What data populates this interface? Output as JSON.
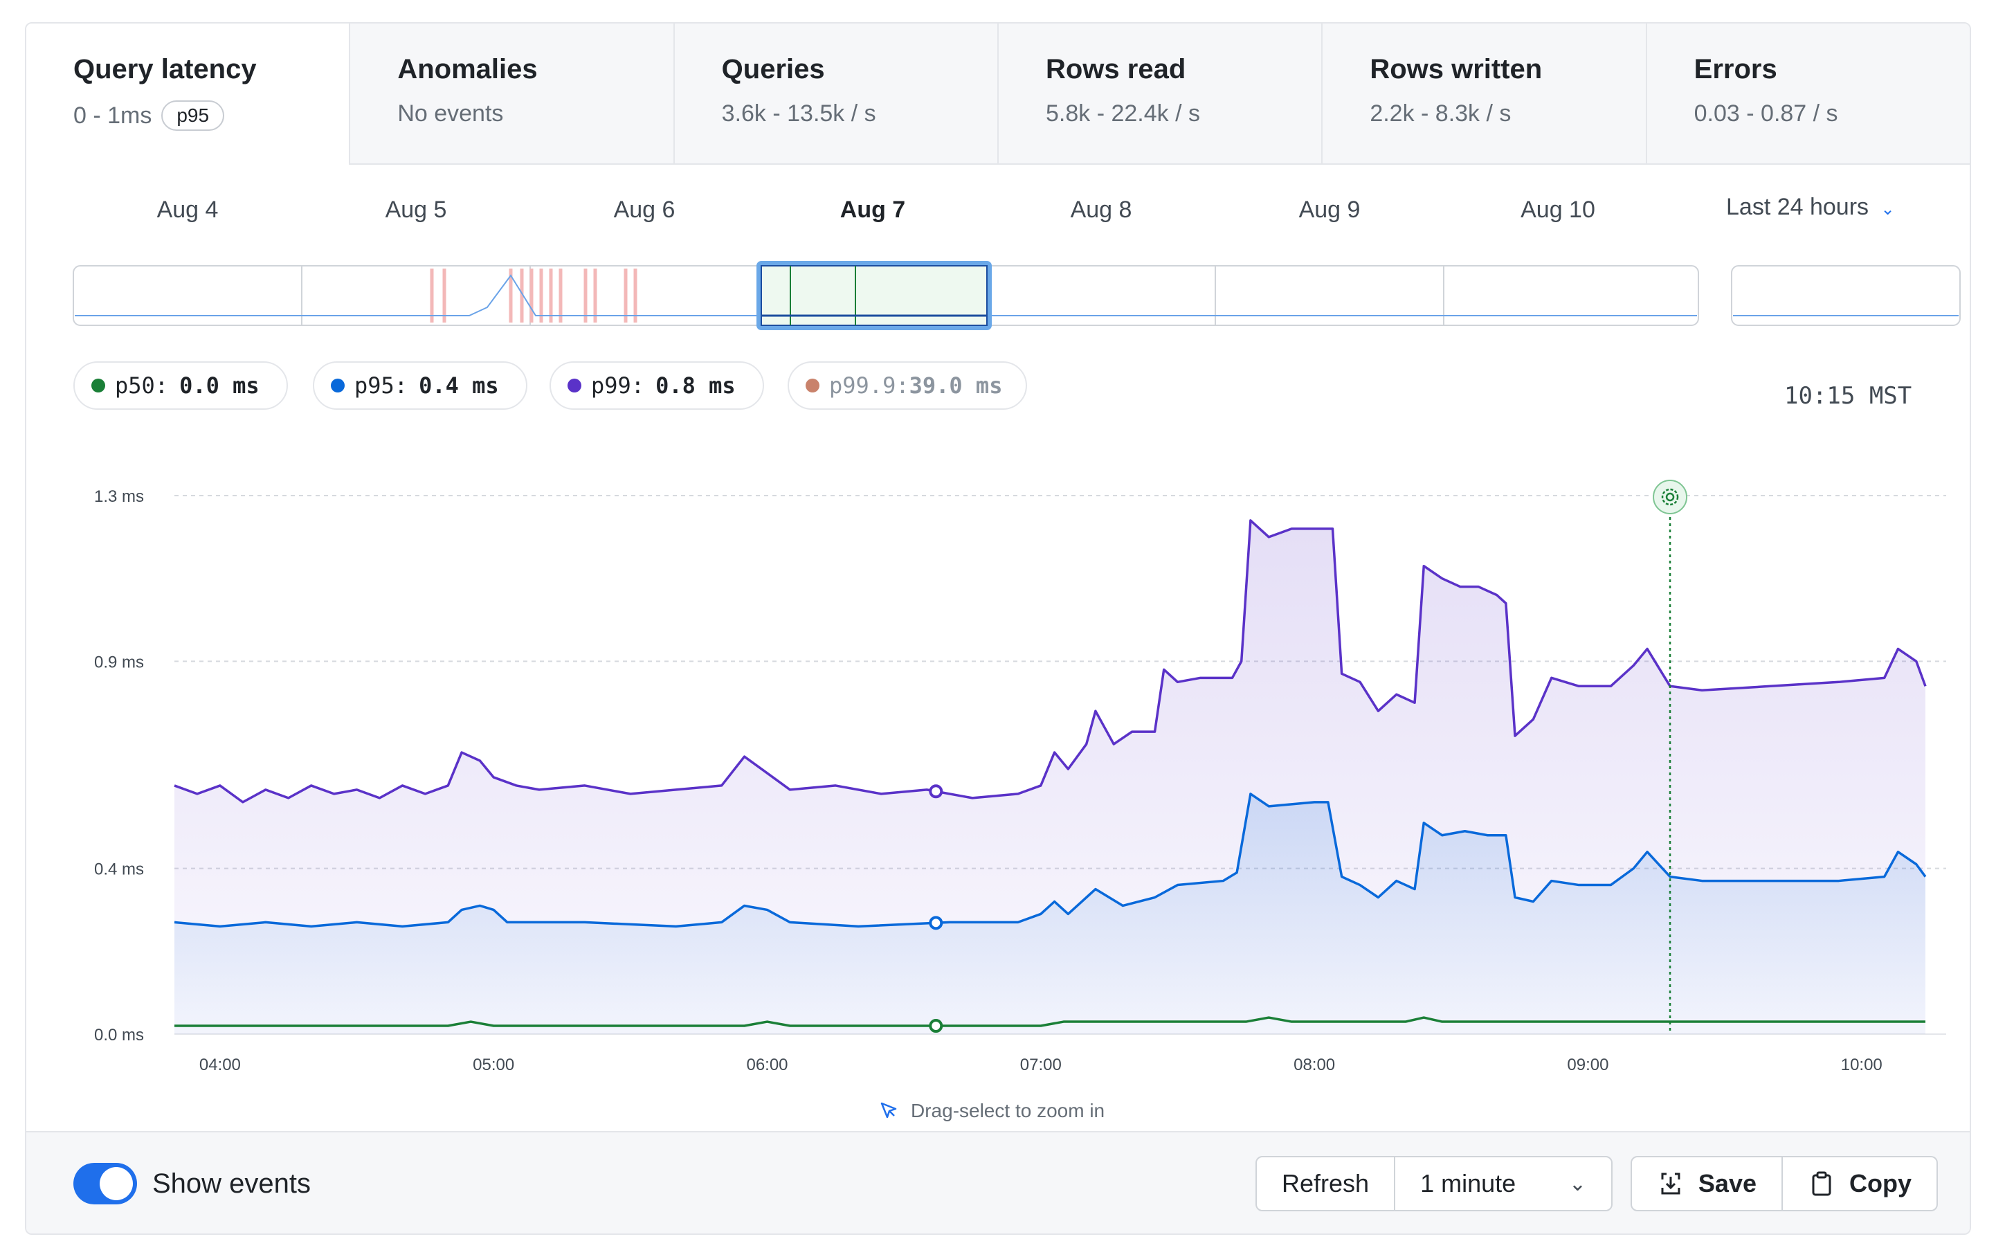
{
  "tabs": [
    {
      "title": "Query latency",
      "subtitle": "0 - 1ms",
      "badge": "p95"
    },
    {
      "title": "Anomalies",
      "subtitle": "No events"
    },
    {
      "title": "Queries",
      "subtitle": "3.6k - 13.5k / s"
    },
    {
      "title": "Rows read",
      "subtitle": "5.8k - 22.4k / s"
    },
    {
      "title": "Rows written",
      "subtitle": "2.2k - 8.3k / s"
    },
    {
      "title": "Errors",
      "subtitle": "0.03 - 0.87 / s"
    }
  ],
  "timeline": {
    "days": [
      "Aug 4",
      "Aug 5",
      "Aug 6",
      "Aug 7",
      "Aug 8",
      "Aug 9",
      "Aug 10"
    ],
    "selected_day": "Aug 7",
    "range_label": "Last 24 hours"
  },
  "legend": [
    {
      "label": "p50:",
      "value": "0.0 ms",
      "color": "#1a7f37"
    },
    {
      "label": "p95:",
      "value": "0.4 ms",
      "color": "#0969da"
    },
    {
      "label": "p99:",
      "value": "0.8 ms",
      "color": "#5a32c8"
    },
    {
      "label": "p99.9:",
      "value": "39.0 ms",
      "color": "#c9826b"
    }
  ],
  "clock": "10:15 MST",
  "hint": "Drag-select to zoom in",
  "footer": {
    "toggle_label": "Show events",
    "toggle_on": true,
    "refresh_label": "Refresh",
    "interval_value": "1 minute",
    "save_label": "Save",
    "copy_label": "Copy"
  },
  "colors": {
    "accent": "#1f6feb",
    "p50": "#1a7f37",
    "p95": "#0969da",
    "p99": "#5a32c8",
    "event": "#1a7f37"
  },
  "chart_data": {
    "type": "line",
    "y_ticks": [
      "1.3 ms",
      "0.9 ms",
      "0.4 ms",
      "0.0 ms"
    ],
    "x_ticks": [
      "04:00",
      "05:00",
      "06:00",
      "07:00",
      "08:00",
      "09:00",
      "10:00"
    ],
    "ylim": [
      0,
      1.3
    ],
    "grid": true,
    "event_marker_time": "09:18",
    "series": [
      {
        "name": "p50",
        "color": "#1a7f37",
        "points": [
          [
            "03:50",
            0.02
          ],
          [
            "04:50",
            0.02
          ],
          [
            "04:55",
            0.03
          ],
          [
            "05:00",
            0.02
          ],
          [
            "05:55",
            0.02
          ],
          [
            "06:00",
            0.03
          ],
          [
            "06:05",
            0.02
          ],
          [
            "07:00",
            0.02
          ],
          [
            "07:05",
            0.03
          ],
          [
            "07:45",
            0.03
          ],
          [
            "07:50",
            0.04
          ],
          [
            "07:55",
            0.03
          ],
          [
            "08:20",
            0.03
          ],
          [
            "08:24",
            0.04
          ],
          [
            "08:28",
            0.03
          ],
          [
            "10:14",
            0.03
          ]
        ]
      },
      {
        "name": "p95",
        "color": "#0969da",
        "points": [
          [
            "03:50",
            0.27
          ],
          [
            "04:00",
            0.26
          ],
          [
            "04:10",
            0.27
          ],
          [
            "04:20",
            0.26
          ],
          [
            "04:30",
            0.27
          ],
          [
            "04:40",
            0.26
          ],
          [
            "04:50",
            0.27
          ],
          [
            "04:53",
            0.3
          ],
          [
            "04:57",
            0.31
          ],
          [
            "05:00",
            0.3
          ],
          [
            "05:03",
            0.27
          ],
          [
            "05:20",
            0.27
          ],
          [
            "05:40",
            0.26
          ],
          [
            "05:50",
            0.27
          ],
          [
            "05:55",
            0.31
          ],
          [
            "06:00",
            0.3
          ],
          [
            "06:05",
            0.27
          ],
          [
            "06:20",
            0.26
          ],
          [
            "06:40",
            0.27
          ],
          [
            "06:55",
            0.27
          ],
          [
            "07:00",
            0.29
          ],
          [
            "07:03",
            0.32
          ],
          [
            "07:06",
            0.29
          ],
          [
            "07:12",
            0.35
          ],
          [
            "07:18",
            0.31
          ],
          [
            "07:25",
            0.33
          ],
          [
            "07:30",
            0.36
          ],
          [
            "07:40",
            0.37
          ],
          [
            "07:43",
            0.39
          ],
          [
            "07:46",
            0.58
          ],
          [
            "07:50",
            0.55
          ],
          [
            "08:00",
            0.56
          ],
          [
            "08:03",
            0.56
          ],
          [
            "08:06",
            0.38
          ],
          [
            "08:10",
            0.36
          ],
          [
            "08:14",
            0.33
          ],
          [
            "08:18",
            0.37
          ],
          [
            "08:22",
            0.35
          ],
          [
            "08:24",
            0.51
          ],
          [
            "08:28",
            0.48
          ],
          [
            "08:33",
            0.49
          ],
          [
            "08:38",
            0.48
          ],
          [
            "08:42",
            0.48
          ],
          [
            "08:44",
            0.33
          ],
          [
            "08:48",
            0.32
          ],
          [
            "08:52",
            0.37
          ],
          [
            "08:58",
            0.36
          ],
          [
            "09:05",
            0.36
          ],
          [
            "09:10",
            0.4
          ],
          [
            "09:13",
            0.44
          ],
          [
            "09:18",
            0.38
          ],
          [
            "09:25",
            0.37
          ],
          [
            "09:40",
            0.37
          ],
          [
            "09:55",
            0.37
          ],
          [
            "10:05",
            0.38
          ],
          [
            "10:08",
            0.44
          ],
          [
            "10:12",
            0.41
          ],
          [
            "10:14",
            0.38
          ]
        ]
      },
      {
        "name": "p99",
        "color": "#5a32c8",
        "points": [
          [
            "03:50",
            0.6
          ],
          [
            "03:55",
            0.58
          ],
          [
            "04:00",
            0.6
          ],
          [
            "04:05",
            0.56
          ],
          [
            "04:10",
            0.59
          ],
          [
            "04:15",
            0.57
          ],
          [
            "04:20",
            0.6
          ],
          [
            "04:25",
            0.58
          ],
          [
            "04:30",
            0.59
          ],
          [
            "04:35",
            0.57
          ],
          [
            "04:40",
            0.6
          ],
          [
            "04:45",
            0.58
          ],
          [
            "04:50",
            0.6
          ],
          [
            "04:53",
            0.68
          ],
          [
            "04:57",
            0.66
          ],
          [
            "05:00",
            0.62
          ],
          [
            "05:05",
            0.6
          ],
          [
            "05:10",
            0.59
          ],
          [
            "05:20",
            0.6
          ],
          [
            "05:30",
            0.58
          ],
          [
            "05:40",
            0.59
          ],
          [
            "05:50",
            0.6
          ],
          [
            "05:55",
            0.67
          ],
          [
            "06:00",
            0.63
          ],
          [
            "06:05",
            0.59
          ],
          [
            "06:15",
            0.6
          ],
          [
            "06:25",
            0.58
          ],
          [
            "06:35",
            0.59
          ],
          [
            "06:45",
            0.57
          ],
          [
            "06:55",
            0.58
          ],
          [
            "07:00",
            0.6
          ],
          [
            "07:03",
            0.68
          ],
          [
            "07:06",
            0.64
          ],
          [
            "07:10",
            0.7
          ],
          [
            "07:12",
            0.78
          ],
          [
            "07:16",
            0.7
          ],
          [
            "07:20",
            0.73
          ],
          [
            "07:25",
            0.73
          ],
          [
            "07:27",
            0.88
          ],
          [
            "07:30",
            0.85
          ],
          [
            "07:35",
            0.86
          ],
          [
            "07:42",
            0.86
          ],
          [
            "07:44",
            0.9
          ],
          [
            "07:46",
            1.24
          ],
          [
            "07:50",
            1.2
          ],
          [
            "07:55",
            1.22
          ],
          [
            "08:02",
            1.22
          ],
          [
            "08:04",
            1.22
          ],
          [
            "08:06",
            0.87
          ],
          [
            "08:10",
            0.85
          ],
          [
            "08:14",
            0.78
          ],
          [
            "08:18",
            0.82
          ],
          [
            "08:22",
            0.8
          ],
          [
            "08:24",
            1.13
          ],
          [
            "08:28",
            1.1
          ],
          [
            "08:32",
            1.08
          ],
          [
            "08:36",
            1.08
          ],
          [
            "08:40",
            1.06
          ],
          [
            "08:42",
            1.04
          ],
          [
            "08:44",
            0.72
          ],
          [
            "08:48",
            0.76
          ],
          [
            "08:52",
            0.86
          ],
          [
            "08:58",
            0.84
          ],
          [
            "09:05",
            0.84
          ],
          [
            "09:10",
            0.89
          ],
          [
            "09:13",
            0.93
          ],
          [
            "09:18",
            0.84
          ],
          [
            "09:25",
            0.83
          ],
          [
            "09:40",
            0.84
          ],
          [
            "09:55",
            0.85
          ],
          [
            "10:05",
            0.86
          ],
          [
            "10:08",
            0.93
          ],
          [
            "10:12",
            0.9
          ],
          [
            "10:14",
            0.84
          ]
        ]
      }
    ]
  }
}
